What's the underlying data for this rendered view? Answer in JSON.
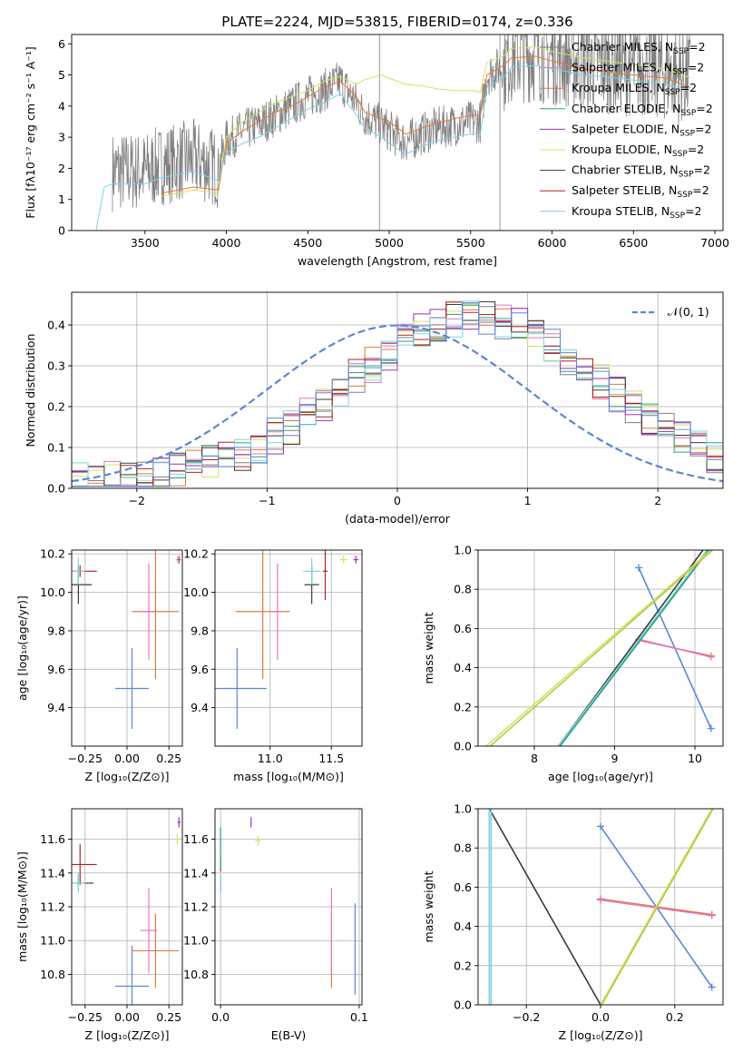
{
  "figure": {
    "title": "PLATE=2224, MJD=53815, FIBERID=0174, z=0.336"
  },
  "colors": {
    "chabrier_miles": "#808080",
    "salpeter_miles": "#e377c2",
    "kroupa_miles": "#e07b39",
    "chabrier_elodie": "#2ca07a",
    "salpeter_elodie": "#9b30b8",
    "kroupa_elodie": "#d4e06a",
    "chabrier_stelib": "#3a3a3a",
    "salpeter_stelib": "#b22222",
    "kroupa_stelib": "#80d4e0",
    "normal_curve": "#5b86d6",
    "blue_model": "#5b86d6"
  },
  "chart_data": [
    {
      "id": "spectrum",
      "type": "line",
      "xlabel": "wavelength [Angstrom, rest frame]",
      "ylabel": "Flux [fλ10⁻¹⁷ erg cm⁻² s⁻¹ A⁻¹]",
      "xlim": [
        3050,
        7050
      ],
      "ylim": [
        0,
        6.3
      ],
      "xticks": [
        "3500",
        "4000",
        "4500",
        "5000",
        "5500",
        "6000",
        "6500",
        "7000"
      ],
      "yticks": [
        "0",
        "1",
        "2",
        "3",
        "4",
        "5",
        "6"
      ],
      "legend_position": "top-right",
      "legend": [
        {
          "label": "Chabrier MILES, N",
          "sub": "SSP",
          "suffix": "=2",
          "color": "#808080"
        },
        {
          "label": "Salpeter MILES, N",
          "sub": "SSP",
          "suffix": "=2",
          "color": "#e377c2"
        },
        {
          "label": "Kroupa MILES, N",
          "sub": "SSP",
          "suffix": "=2",
          "color": "#e07b39"
        },
        {
          "label": "Chabrier ELODIE, N",
          "sub": "SSP",
          "suffix": "=2",
          "color": "#2ca07a"
        },
        {
          "label": "Salpeter ELODIE, N",
          "sub": "SSP",
          "suffix": "=2",
          "color": "#9b30b8"
        },
        {
          "label": "Kroupa ELODIE, N",
          "sub": "SSP",
          "suffix": "=2",
          "color": "#d4e06a"
        },
        {
          "label": "Chabrier STELIB, N",
          "sub": "SSP",
          "suffix": "=2",
          "color": "#3a3a3a"
        },
        {
          "label": "Salpeter STELIB, N",
          "sub": "SSP",
          "suffix": "=2",
          "color": "#b22222"
        },
        {
          "label": "Kroupa STELIB, N",
          "sub": "SSP",
          "suffix": "=2",
          "color": "#80d4e0"
        }
      ],
      "series": [
        {
          "name": "model-high",
          "color": "#d4e06a",
          "x": [
            3600,
            3800,
            3950,
            4000,
            4100,
            4200,
            4300,
            4400,
            4500,
            4600,
            4700,
            4800,
            4850,
            4950,
            5000,
            5100,
            5200,
            5300,
            5400,
            5500,
            5560,
            5600,
            5700,
            5750,
            5900,
            6000,
            6200,
            6400,
            6700,
            6850
          ],
          "y": [
            1.1,
            1.3,
            1.2,
            3.0,
            3.5,
            3.8,
            4.1,
            4.3,
            4.5,
            4.8,
            4.95,
            4.7,
            4.85,
            5.0,
            4.9,
            4.7,
            4.65,
            4.55,
            4.5,
            4.5,
            4.45,
            5.4,
            5.6,
            5.85,
            5.9,
            5.75,
            5.55,
            5.4,
            5.2,
            4.9
          ]
        },
        {
          "name": "model-mid",
          "color": "#e07b39",
          "x": [
            3600,
            3800,
            3950,
            4000,
            4100,
            4200,
            4300,
            4400,
            4500,
            4600,
            4700,
            4800,
            4850,
            4950,
            5000,
            5100,
            5200,
            5300,
            5400,
            5500,
            5560,
            5600,
            5700,
            5750,
            5900,
            6000,
            6200,
            6400,
            6700,
            6850
          ],
          "y": [
            1.2,
            1.4,
            1.3,
            2.8,
            3.2,
            3.5,
            3.8,
            4.0,
            4.3,
            4.6,
            4.8,
            4.3,
            3.8,
            3.6,
            3.5,
            3.1,
            3.3,
            3.45,
            3.6,
            3.7,
            3.7,
            5.0,
            5.3,
            5.55,
            5.6,
            5.45,
            5.2,
            5.05,
            4.9,
            4.6
          ]
        },
        {
          "name": "model-low",
          "color": "#80d4e0",
          "x": [
            3200,
            3250,
            3300,
            3500,
            3600,
            3800,
            3950,
            4000,
            4100,
            4200,
            4300,
            4400,
            4500,
            4600,
            4700,
            4800,
            4850,
            4950,
            5000,
            5100,
            5200,
            5300,
            5400,
            5500,
            5560,
            5600,
            5700,
            5750,
            5900,
            6000,
            6200,
            6400,
            6700,
            6850
          ],
          "y": [
            0,
            1.4,
            1.5,
            1.5,
            1.7,
            1.9,
            1.6,
            2.5,
            2.8,
            3.0,
            3.3,
            3.6,
            3.9,
            4.1,
            4.4,
            3.7,
            3.3,
            3.0,
            2.8,
            2.45,
            2.7,
            2.9,
            3.0,
            3.1,
            3.1,
            4.6,
            4.9,
            5.25,
            5.3,
            5.2,
            5.0,
            4.9,
            4.7,
            4.5
          ]
        }
      ]
    },
    {
      "id": "residuals",
      "type": "line",
      "xlabel": "(data-model)/error",
      "ylabel": "Normed distribution",
      "xlim": [
        -2.5,
        2.5
      ],
      "ylim": [
        0,
        0.48
      ],
      "xticks": [
        "−2",
        "−1",
        "0",
        "1",
        "2"
      ],
      "yticks": [
        "0.0",
        "0.1",
        "0.2",
        "0.3",
        "0.4"
      ],
      "grid": true,
      "legend_position": "top-right",
      "legend": [
        {
          "label": "𝒩(0, 1)",
          "color": "#5b86d6",
          "style": "dashed"
        }
      ],
      "curve": {
        "type": "gaussian",
        "mean": 0,
        "sigma": 1
      }
    },
    {
      "id": "age-vs-Z",
      "type": "scatter",
      "xlabel": "Z [log₁₀(Z/Z⊙)]",
      "ylabel": "age  [log₁₀(age/yr)]",
      "xlim": [
        -0.33,
        0.33
      ],
      "ylim": [
        9.2,
        10.22
      ],
      "xticks": [
        "−0.25",
        "0.00",
        "0.25"
      ],
      "yticks": [
        "9.4",
        "9.6",
        "9.8",
        "10.0",
        "10.2"
      ],
      "points": [
        {
          "x": 0.03,
          "y": 9.5,
          "xerr": 0.1,
          "yerr": 0.21,
          "color": "#5b86d6"
        },
        {
          "x": 0.17,
          "y": 9.9,
          "xerr": 0.14,
          "yerr": 0.35,
          "color": "#e07b39"
        },
        {
          "x": 0.13,
          "y": 9.9,
          "xerr": 0.03,
          "yerr": 0.25,
          "color": "#e377c2"
        },
        {
          "x": -0.28,
          "y": 10.11,
          "xerr": 0.1,
          "yerr": 0.03,
          "color": "#b22222"
        },
        {
          "x": -0.29,
          "y": 10.04,
          "xerr": 0.08,
          "yerr": 0.1,
          "color": "#3a3a3a"
        },
        {
          "x": -0.29,
          "y": 10.11,
          "xerr": 0.04,
          "yerr": 0.07,
          "color": "#80d4e0"
        },
        {
          "x": 0.3,
          "y": 10.17,
          "xerr": 0.01,
          "yerr": 0.02,
          "color": "#d4e06a"
        },
        {
          "x": 0.31,
          "y": 10.17,
          "xerr": 0.01,
          "yerr": 0.02,
          "color": "#9b30b8"
        }
      ]
    },
    {
      "id": "age-vs-mass",
      "type": "scatter",
      "xlabel": "mass [log₁₀(M/M⊙)]",
      "ylabel": "",
      "xlim": [
        10.55,
        11.75
      ],
      "ylim": [
        9.2,
        10.22
      ],
      "xticks": [
        "11.0",
        "11.5"
      ],
      "yticks": [
        "9.4",
        "9.6",
        "9.8",
        "10.0",
        "10.2"
      ],
      "points": [
        {
          "x": 10.73,
          "y": 9.5,
          "xerr": 0.24,
          "yerr": 0.21,
          "color": "#5b86d6"
        },
        {
          "x": 10.94,
          "y": 9.9,
          "xerr": 0.22,
          "yerr": 0.35,
          "color": "#e07b39"
        },
        {
          "x": 11.06,
          "y": 9.9,
          "xerr": 0.04,
          "yerr": 0.25,
          "color": "#e377c2"
        },
        {
          "x": 11.45,
          "y": 10.11,
          "xerr": 0.02,
          "yerr": 0.15,
          "color": "#b22222"
        },
        {
          "x": 11.34,
          "y": 10.04,
          "xerr": 0.06,
          "yerr": 0.1,
          "color": "#3a3a3a"
        },
        {
          "x": 11.34,
          "y": 10.11,
          "xerr": 0.07,
          "yerr": 0.07,
          "color": "#80d4e0"
        },
        {
          "x": 11.6,
          "y": 10.17,
          "xerr": 0.03,
          "yerr": 0.02,
          "color": "#d4e06a"
        },
        {
          "x": 11.7,
          "y": 10.17,
          "xerr": 0.02,
          "yerr": 0.02,
          "color": "#9b30b8"
        }
      ]
    },
    {
      "id": "weight-vs-age",
      "type": "line",
      "xlabel": "age  [log₁₀(age/yr)]",
      "ylabel": "mass weight",
      "xlim": [
        7.3,
        10.35
      ],
      "ylim": [
        0,
        1
      ],
      "xticks": [
        "8",
        "9",
        "10"
      ],
      "yticks": [
        "0.0",
        "0.2",
        "0.4",
        "0.6",
        "0.8",
        "1.0"
      ],
      "grid": true,
      "series": [
        {
          "name": "blue",
          "color": "#5b86d6",
          "x": [
            9.3,
            10.2
          ],
          "y": [
            0.91,
            0.09
          ],
          "markers": true
        },
        {
          "name": "orange",
          "color": "#e07b39",
          "x": [
            9.3,
            10.2
          ],
          "y": [
            0.54,
            0.46
          ],
          "markers": true
        },
        {
          "name": "pink",
          "color": "#e377c2",
          "x": [
            9.3,
            10.2
          ],
          "y": [
            0.545,
            0.455
          ],
          "markers": true
        },
        {
          "name": "dark",
          "color": "#3a3a3a",
          "x": [
            8.3,
            10.1
          ],
          "y": [
            0,
            1
          ],
          "markers": false
        },
        {
          "name": "cyan",
          "color": "#80d4e0",
          "x": [
            8.3,
            10.15
          ],
          "y": [
            0,
            1
          ],
          "markers": false
        },
        {
          "name": "green",
          "color": "#2ca07a",
          "x": [
            8.32,
            10.17
          ],
          "y": [
            0,
            1
          ],
          "markers": false
        },
        {
          "name": "yellow",
          "color": "#d4e06a",
          "x": [
            7.4,
            10.2
          ],
          "y": [
            0,
            1
          ],
          "markers": false
        },
        {
          "name": "yellow2",
          "color": "#b8c840",
          "x": [
            7.45,
            10.22
          ],
          "y": [
            0,
            1
          ],
          "markers": false
        }
      ]
    },
    {
      "id": "mass-vs-Z",
      "type": "scatter",
      "xlabel": "Z [log₁₀(Z/Z⊙)]",
      "ylabel": "mass [log₁₀(M/M⊙)]",
      "xlim": [
        -0.33,
        0.33
      ],
      "ylim": [
        10.62,
        11.78
      ],
      "xticks": [
        "−0.25",
        "0.00",
        "0.25"
      ],
      "yticks": [
        "10.8",
        "11.0",
        "11.2",
        "11.4",
        "11.6"
      ],
      "points": [
        {
          "x": 0.03,
          "y": 10.73,
          "xerr": 0.1,
          "yerr": 0.24,
          "color": "#5b86d6"
        },
        {
          "x": 0.17,
          "y": 10.94,
          "xerr": 0.14,
          "yerr": 0.22,
          "color": "#e07b39"
        },
        {
          "x": 0.13,
          "y": 11.06,
          "xerr": 0.05,
          "yerr": 0.25,
          "color": "#e377c2"
        },
        {
          "x": -0.28,
          "y": 11.45,
          "xerr": 0.1,
          "yerr": 0.12,
          "color": "#b22222"
        },
        {
          "x": -0.29,
          "y": 11.34,
          "xerr": 0.09,
          "yerr": 0.04,
          "color": "#3a3a3a"
        },
        {
          "x": -0.29,
          "y": 11.34,
          "xerr": 0.04,
          "yerr": 0.06,
          "color": "#80d4e0"
        },
        {
          "x": 0.3,
          "y": 11.6,
          "xerr": 0.01,
          "yerr": 0.03,
          "color": "#d4e06a"
        },
        {
          "x": 0.31,
          "y": 11.7,
          "xerr": 0.01,
          "yerr": 0.03,
          "color": "#9b30b8"
        }
      ]
    },
    {
      "id": "mass-vs-ebv",
      "type": "scatter",
      "xlabel": "E(B-V)",
      "ylabel": "",
      "xlim": [
        -0.004,
        0.102
      ],
      "ylim": [
        10.62,
        11.78
      ],
      "xticks": [
        "0.0",
        "0.1"
      ],
      "yticks": [
        "10.8",
        "11.0",
        "11.2",
        "11.4",
        "11.6"
      ],
      "points": [
        {
          "x": 0.097,
          "y": 10.95,
          "xerr": 0,
          "yerr": 0.27,
          "color": "#5b86d6"
        },
        {
          "x": 0.08,
          "y": 10.94,
          "xerr": 0,
          "yerr": 0.22,
          "color": "#e07b39"
        },
        {
          "x": 0.08,
          "y": 11.06,
          "xerr": 0,
          "yerr": 0.25,
          "color": "#e377c2"
        },
        {
          "x": 0.0,
          "y": 11.45,
          "xerr": 0,
          "yerr": 0.04,
          "color": "#b22222"
        },
        {
          "x": 0.0,
          "y": 11.34,
          "xerr": 0,
          "yerr": 0.05,
          "color": "#3a3a3a"
        },
        {
          "x": 0.0,
          "y": 11.34,
          "xerr": 0,
          "yerr": 0.06,
          "color": "#80d4e0"
        },
        {
          "x": 0.0,
          "y": 11.55,
          "xerr": 0,
          "yerr": 0.12,
          "color": "#2ca07a"
        },
        {
          "x": 0.022,
          "y": 11.7,
          "xerr": 0,
          "yerr": 0.03,
          "color": "#9b30b8"
        },
        {
          "x": 0.027,
          "y": 11.59,
          "xerr": 0.002,
          "yerr": 0.03,
          "color": "#d4e06a"
        }
      ]
    },
    {
      "id": "weight-vs-Z",
      "type": "line",
      "xlabel": "Z [log₁₀(Z/Z⊙)]",
      "ylabel": "mass weight",
      "xlim": [
        -0.33,
        0.33
      ],
      "ylim": [
        0,
        1
      ],
      "xticks": [
        "−0.2",
        "0.0",
        "0.2"
      ],
      "yticks": [
        "0.0",
        "0.2",
        "0.4",
        "0.6",
        "0.8",
        "1.0"
      ],
      "grid": true,
      "series": [
        {
          "name": "blue",
          "color": "#5b86d6",
          "x": [
            0.0,
            0.3
          ],
          "y": [
            0.91,
            0.09
          ],
          "markers": true
        },
        {
          "name": "orange",
          "color": "#e07b39",
          "x": [
            0.0,
            0.3
          ],
          "y": [
            0.54,
            0.46
          ],
          "markers": true
        },
        {
          "name": "pink",
          "color": "#e377c2",
          "x": [
            0.0,
            0.3
          ],
          "y": [
            0.535,
            0.455
          ],
          "markers": true
        },
        {
          "name": "dark",
          "color": "#3a3a3a",
          "x": [
            -0.3,
            0.0
          ],
          "y": [
            1,
            0
          ],
          "markers": false
        },
        {
          "name": "cyan",
          "color": "#80d4e0",
          "x": [
            -0.3,
            -0.3
          ],
          "y": [
            0,
            1
          ],
          "markers": false
        },
        {
          "name": "cyan2",
          "color": "#80d4e0",
          "x": [
            -0.295,
            -0.295
          ],
          "y": [
            0,
            1
          ],
          "markers": false
        },
        {
          "name": "yellow",
          "color": "#d4e06a",
          "x": [
            0.0,
            0.3
          ],
          "y": [
            0,
            1
          ],
          "markers": false
        },
        {
          "name": "yellow2",
          "color": "#b8c840",
          "x": [
            0.003,
            0.303
          ],
          "y": [
            0,
            1
          ],
          "markers": false
        }
      ]
    }
  ]
}
